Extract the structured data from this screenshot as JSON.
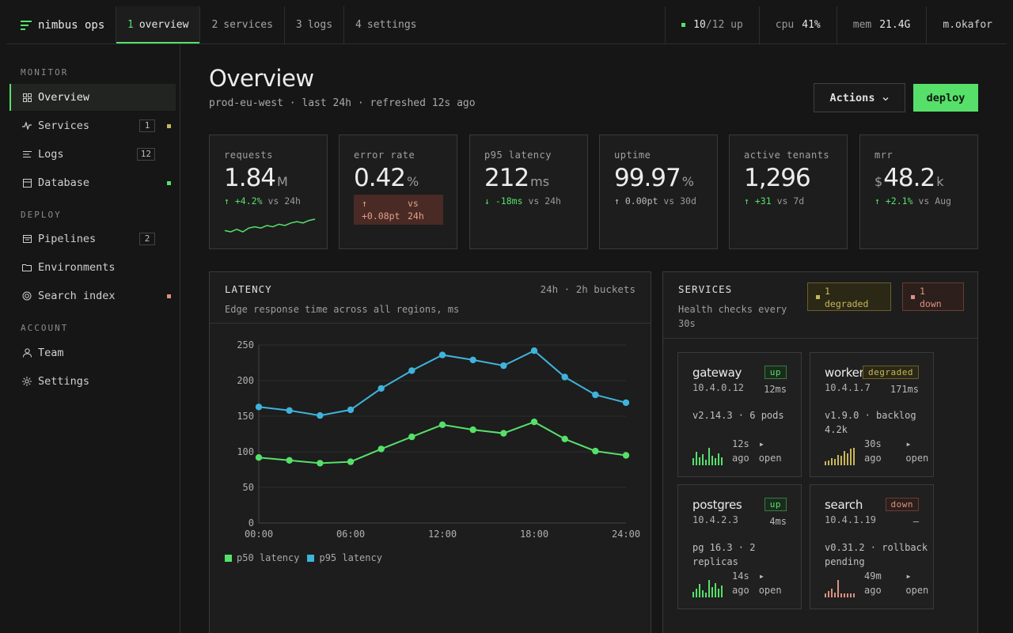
{
  "app": {
    "name": "nimbus ops"
  },
  "tabs": [
    {
      "num": "1",
      "label": "overview",
      "active": true
    },
    {
      "num": "2",
      "label": "services"
    },
    {
      "num": "3",
      "label": "logs"
    },
    {
      "num": "4",
      "label": "settings"
    }
  ],
  "topstats": {
    "up_count": "10",
    "up_total": "/12 up",
    "cpu_label": "cpu",
    "cpu_value": "41%",
    "mem_label": "mem",
    "mem_value": "21.4G",
    "user": "m.okafor"
  },
  "sidebar": {
    "sections": {
      "monitor": "MONITOR",
      "deploy": "DEPLOY",
      "account": "ACCOUNT"
    },
    "items": [
      {
        "label": "Overview",
        "icon": "grid-icon"
      },
      {
        "label": "Services",
        "icon": "pulse-icon",
        "count": "1",
        "dot": "#c9b65a"
      },
      {
        "label": "Logs",
        "icon": "lines-icon",
        "count": "12"
      },
      {
        "label": "Database",
        "icon": "database-icon",
        "dot": "#56e06a"
      },
      {
        "label": "Pipelines",
        "icon": "pipeline-icon",
        "count": "2"
      },
      {
        "label": "Environments",
        "icon": "folder-icon"
      },
      {
        "label": "Search index",
        "icon": "target-icon",
        "dot": "#e0907e"
      },
      {
        "label": "Team",
        "icon": "user-icon"
      },
      {
        "label": "Settings",
        "icon": "gear-icon"
      }
    ]
  },
  "header": {
    "title": "Overview",
    "subtitle": "prod-eu-west · last 24h · refreshed 12s ago",
    "actions_label": "Actions",
    "deploy_label": "deploy"
  },
  "kpis": [
    {
      "label": "requests",
      "value": "1.84",
      "unit": "M",
      "arrow": "↑",
      "delta": "+4.2%",
      "vs": "vs 24h"
    },
    {
      "label": "error rate",
      "value": "0.42",
      "unit": "%",
      "arrow": "↑",
      "delta": "+0.08pt",
      "vs_a": "vs",
      "vs_b": "24h"
    },
    {
      "label": "p95 latency",
      "value": "212",
      "unit": "ms",
      "arrow": "↓",
      "delta": "-18ms",
      "vs": "vs 24h"
    },
    {
      "label": "uptime",
      "value": "99.97",
      "unit": "%",
      "arrow": "↑",
      "delta": "0.00pt",
      "vs": "vs 30d"
    },
    {
      "label": "active tenants",
      "value": "1,296",
      "unit": "",
      "arrow": "↑",
      "delta": "+31",
      "vs": "vs 7d"
    },
    {
      "label": "mrr",
      "prefix": "$",
      "value": "48.2",
      "unit": "k",
      "arrow": "↑",
      "delta": "+2.1%",
      "vs": "vs Aug"
    }
  ],
  "sparkline": [
    6,
    5,
    7,
    5,
    8,
    9,
    8,
    10,
    9,
    11,
    10,
    12,
    13,
    12,
    14,
    15
  ],
  "latency": {
    "title": "LATENCY",
    "subtitle": "Edge response time across all regions, ms",
    "meta": "24h · 2h buckets"
  },
  "chart_data": {
    "type": "line",
    "x": [
      "00:00",
      "02:00",
      "04:00",
      "06:00",
      "08:00",
      "10:00",
      "12:00",
      "14:00",
      "16:00",
      "18:00",
      "20:00",
      "22:00",
      "24:00"
    ],
    "xticks": [
      "00:00",
      "06:00",
      "12:00",
      "18:00",
      "24:00"
    ],
    "yticks": [
      0,
      50,
      100,
      150,
      200,
      250
    ],
    "ylim": [
      0,
      250
    ],
    "grid": true,
    "legend": "bottom-left",
    "series": [
      {
        "name": "p50 latency",
        "color": "#56e06a",
        "values": [
          92,
          88,
          84,
          86,
          104,
          121,
          138,
          131,
          126,
          142,
          118,
          101,
          95
        ]
      },
      {
        "name": "p95 latency",
        "color": "#3fb3dc",
        "values": [
          163,
          158,
          151,
          159,
          189,
          214,
          236,
          229,
          221,
          242,
          205,
          180,
          169
        ]
      }
    ]
  },
  "services": {
    "title": "SERVICES",
    "subtitle": "Health checks every 30s",
    "pill_degraded": {
      "count": "1",
      "label": "degraded"
    },
    "pill_down": {
      "count": "1",
      "label": "down"
    },
    "items": [
      {
        "name": "gateway",
        "ip": "10.4.0.12",
        "status": "up",
        "latency": "12ms",
        "info": "v2.14.3 · 6 pods",
        "time_a": "12s",
        "time_b": "ago",
        "open_a": "▸",
        "open_b": "open",
        "bars": [
          4,
          9,
          5,
          7,
          3,
          12,
          6,
          4,
          8,
          5
        ],
        "color": "#56e06a"
      },
      {
        "name": "worker",
        "ip": "10.4.1.7",
        "status": "degraded",
        "latency": "171ms",
        "info": "v1.9.0 · backlog 4.2k",
        "time": "30s ago",
        "open": "▸ open",
        "bars": [
          2,
          3,
          5,
          4,
          8,
          7,
          11,
          9,
          13,
          14
        ],
        "color": "#c9b65a"
      },
      {
        "name": "postgres",
        "ip": "10.4.2.3",
        "status": "up",
        "latency": "4ms",
        "info": "pg 16.3 · 2 replicas",
        "time_a": "14s",
        "time_b": "ago",
        "open_a": "▸",
        "open_b": "open",
        "bars": [
          3,
          5,
          8,
          4,
          2,
          11,
          6,
          9,
          5,
          7
        ],
        "color": "#56e06a"
      },
      {
        "name": "search",
        "ip": "10.4.1.19",
        "status": "down",
        "latency": "—",
        "info": "v0.31.2 · rollback pending",
        "time": "49m ago",
        "open": "▸ open",
        "bars": [
          2,
          4,
          6,
          3,
          14,
          2,
          2,
          2,
          2,
          2
        ],
        "color": "#e0907e"
      }
    ]
  }
}
